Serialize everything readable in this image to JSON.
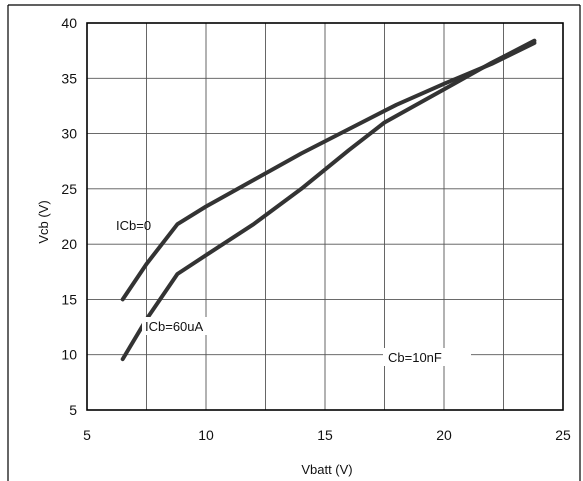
{
  "chart_data": {
    "type": "line",
    "title": "",
    "xlabel": "Vbatt (V)",
    "ylabel": "Vcb (V)",
    "xlim": [
      5,
      25
    ],
    "ylim": [
      5,
      40
    ],
    "xticks": [
      "5",
      "10",
      "15",
      "20",
      "25"
    ],
    "yticks": [
      "5",
      "10",
      "15",
      "20",
      "25",
      "30",
      "35",
      "40"
    ],
    "x_minor_gridlines": [
      7.5,
      12.5,
      17.5,
      22.5
    ],
    "grid": true,
    "line_color": "#333333",
    "series": [
      {
        "label": "ICb=0",
        "x": [
          6.5,
          7.5,
          8.8,
          10,
          12,
          14,
          16,
          18,
          20,
          22,
          23.8
        ],
        "y": [
          15,
          18.2,
          21.8,
          23.4,
          25.8,
          28.2,
          30.4,
          32.6,
          34.5,
          36.3,
          38.2
        ]
      },
      {
        "label": "ICb=60uA",
        "x": [
          6.5,
          7.5,
          8.8,
          10,
          12,
          14,
          16,
          17.5,
          19,
          20.5,
          22,
          23.8
        ],
        "y": [
          9.6,
          13.2,
          17.3,
          19,
          21.8,
          25,
          28.5,
          31,
          32.8,
          34.6,
          36.4,
          38.4
        ]
      }
    ],
    "annotations": [
      "ICb=0",
      "ICb=60uA",
      "Cb=10nF"
    ]
  }
}
